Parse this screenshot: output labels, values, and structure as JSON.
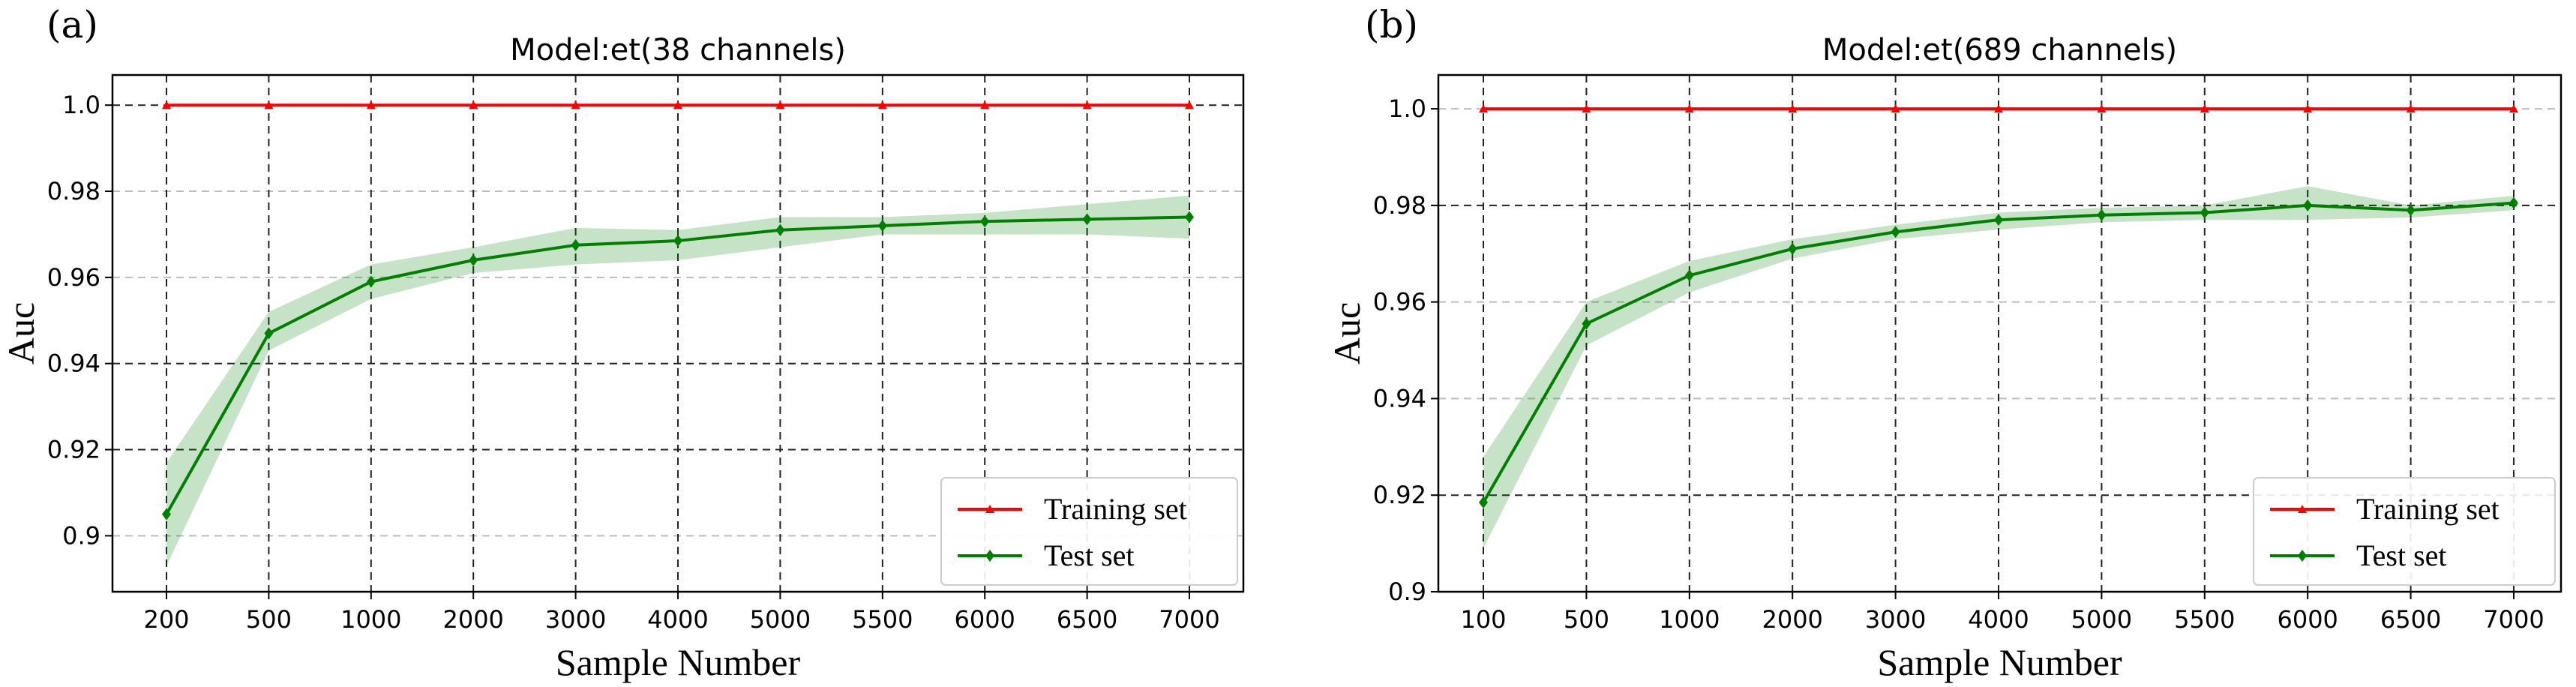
{
  "chart_data": [
    {
      "panel": "(a)",
      "type": "line",
      "title": "Model:et(38 channels)",
      "xlabel": "Sample Number",
      "ylabel": "Auc",
      "categories": [
        "200",
        "500",
        "1000",
        "2000",
        "3000",
        "4000",
        "5000",
        "5500",
        "6000",
        "6500",
        "7000"
      ],
      "ylim": [
        0.887,
        1.007
      ],
      "yticks": [
        0.9,
        0.92,
        0.94,
        0.96,
        0.98,
        1.0
      ],
      "ytick_labels": [
        "0.9",
        "0.92",
        "0.94",
        "0.96",
        "0.98",
        "1.0"
      ],
      "dark_gridlines_y": [
        0.92,
        0.94,
        1.0
      ],
      "grid": true,
      "legend_position": "lower-right",
      "series": [
        {
          "name": "Training set",
          "color": "#ff0000",
          "marker": "triangle",
          "values": [
            1.0,
            1.0,
            1.0,
            1.0,
            1.0,
            1.0,
            1.0,
            1.0,
            1.0,
            1.0,
            1.0
          ]
        },
        {
          "name": "Test set",
          "color": "#007f00",
          "marker": "diamond",
          "values": [
            0.905,
            0.947,
            0.959,
            0.964,
            0.9675,
            0.9685,
            0.971,
            0.972,
            0.973,
            0.9735,
            0.974
          ],
          "band_lower": [
            0.893,
            0.943,
            0.955,
            0.961,
            0.963,
            0.964,
            0.967,
            0.97,
            0.97,
            0.97,
            0.969
          ],
          "band_upper": [
            0.917,
            0.952,
            0.963,
            0.967,
            0.9715,
            0.971,
            0.974,
            0.974,
            0.975,
            0.977,
            0.979
          ]
        }
      ]
    },
    {
      "panel": "(b)",
      "type": "line",
      "title": "Model:et(689 channels)",
      "xlabel": "Sample Number",
      "ylabel": "Auc",
      "categories": [
        "100",
        "500",
        "1000",
        "2000",
        "3000",
        "4000",
        "5000",
        "5500",
        "6000",
        "6500",
        "7000"
      ],
      "ylim": [
        0.9,
        1.007
      ],
      "yticks": [
        0.9,
        0.92,
        0.94,
        0.96,
        0.98,
        1.0
      ],
      "ytick_labels": [
        "0.9",
        "0.92",
        "0.94",
        "0.96",
        "0.98",
        "1.0"
      ],
      "dark_gridlines_y": [
        0.92,
        0.98
      ],
      "grid": true,
      "legend_position": "lower-right",
      "series": [
        {
          "name": "Training set",
          "color": "#ff0000",
          "marker": "triangle",
          "values": [
            1.0,
            1.0,
            1.0,
            1.0,
            1.0,
            1.0,
            1.0,
            1.0,
            1.0,
            1.0,
            1.0
          ]
        },
        {
          "name": "Test set",
          "color": "#007f00",
          "marker": "diamond",
          "values": [
            0.9185,
            0.9555,
            0.9655,
            0.971,
            0.9745,
            0.977,
            0.978,
            0.9785,
            0.98,
            0.979,
            0.9805
          ],
          "band_lower": [
            0.909,
            0.951,
            0.962,
            0.969,
            0.973,
            0.975,
            0.9765,
            0.977,
            0.977,
            0.9775,
            0.979
          ],
          "band_upper": [
            0.928,
            0.96,
            0.9685,
            0.973,
            0.976,
            0.9785,
            0.9795,
            0.98,
            0.984,
            0.98,
            0.982
          ]
        }
      ]
    }
  ]
}
